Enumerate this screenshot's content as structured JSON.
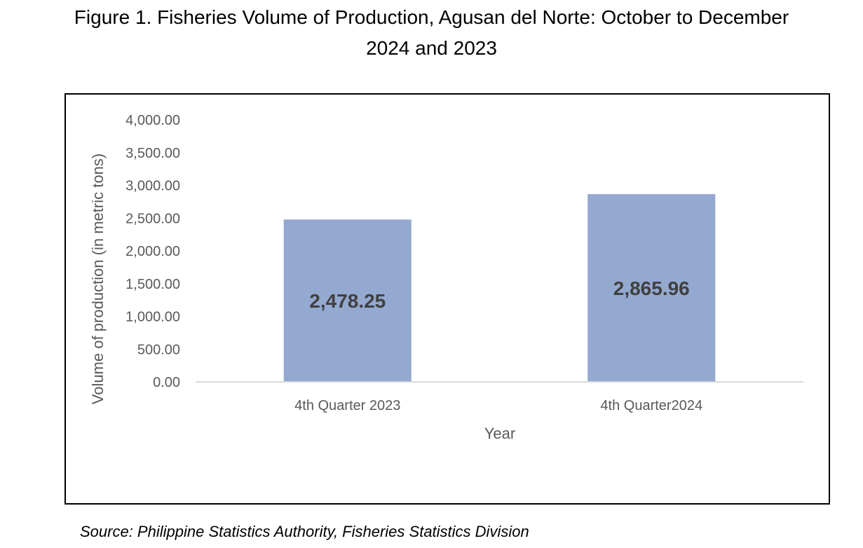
{
  "chart_data": {
    "type": "bar",
    "title": [
      "Figure 1. Fisheries Volume of Production, Agusan del Norte: October to December",
      "2024 and 2023"
    ],
    "categories": [
      "4th Quarter 2023",
      "4th Quarter2024"
    ],
    "values": [
      2478.25,
      2865.96
    ],
    "data_labels": [
      "2,478.25",
      "2,865.96"
    ],
    "xlabel": "Year",
    "ylabel": "Volume of production (in metric tons)",
    "ylim": [
      0,
      4000
    ],
    "yticks": [
      0,
      500,
      1000,
      1500,
      2000,
      2500,
      3000,
      3500,
      4000
    ],
    "ytick_labels": [
      "0.00",
      "500.00",
      "1,000.00",
      "1,500.00",
      "2,000.00",
      "2,500.00",
      "3,000.00",
      "3,500.00",
      "4,000.00"
    ],
    "grid": false,
    "legend": "none",
    "bar_color": "#94a9d0",
    "axis_color": "#d9d9d9",
    "tick_text_color": "#595959",
    "data_label_color": "#404040"
  },
  "source": "Source: Philippine Statistics Authority, Fisheries Statistics Division"
}
